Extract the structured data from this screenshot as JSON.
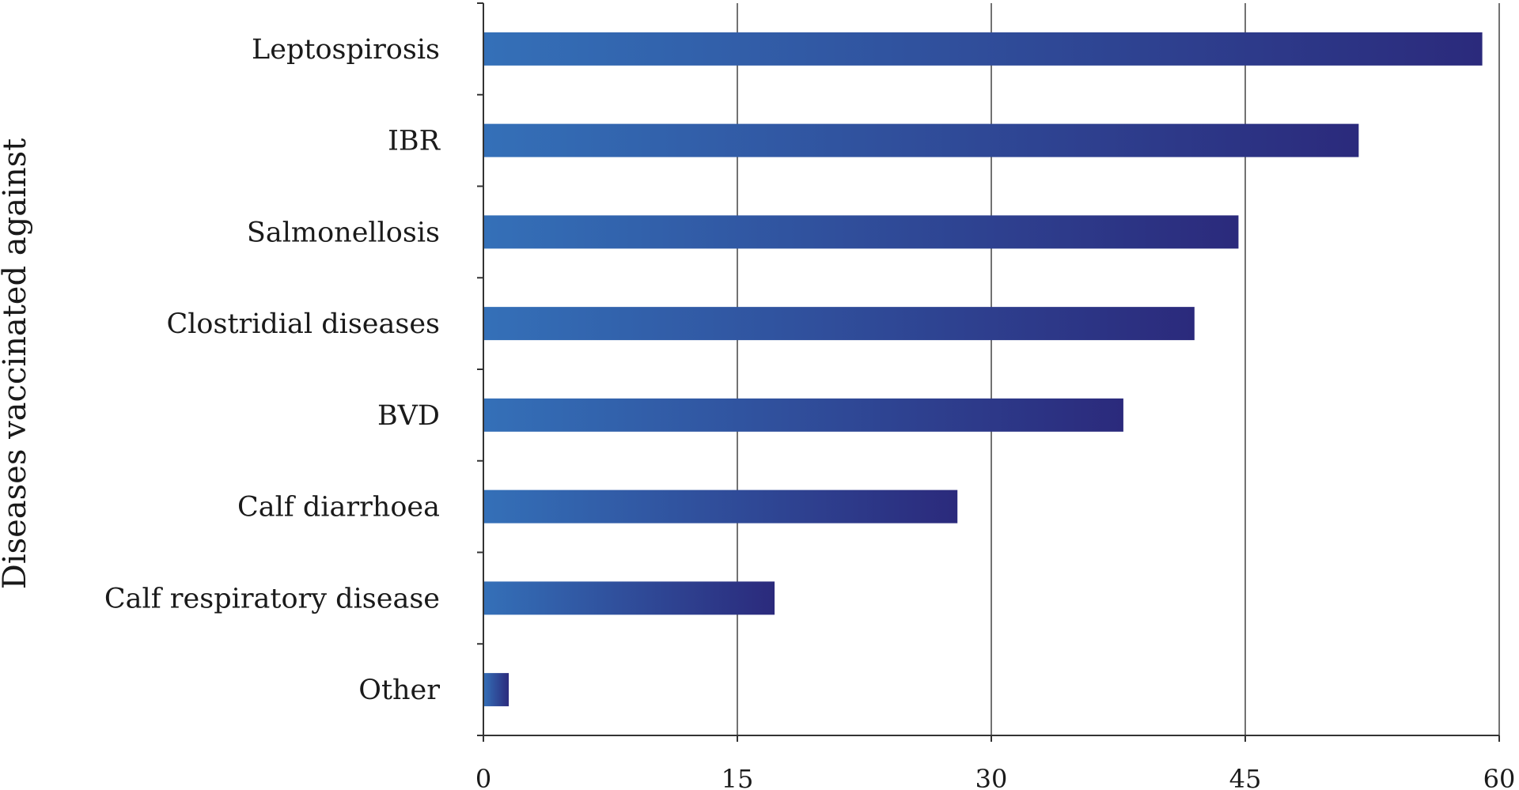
{
  "chart_data": {
    "type": "bar",
    "orientation": "horizontal",
    "title": "",
    "xlabel": "",
    "ylabel": "Diseases vaccinated against",
    "categories": [
      "Leptospirosis",
      "IBR",
      "Salmonellosis",
      "Clostridial diseases",
      "BVD",
      "Calf diarrhoea",
      "Calf respiratory disease",
      "Other"
    ],
    "values": [
      59,
      51.7,
      44.6,
      42,
      37.8,
      28,
      17.2,
      1.5
    ],
    "xlim": [
      0,
      60
    ],
    "xticks": [
      "0",
      "15",
      "30",
      "45",
      "60"
    ],
    "grid": "vertical",
    "colors": {
      "bar_start": "#3470b8",
      "bar_end": "#2b2a7c",
      "axis": "#333333"
    }
  }
}
